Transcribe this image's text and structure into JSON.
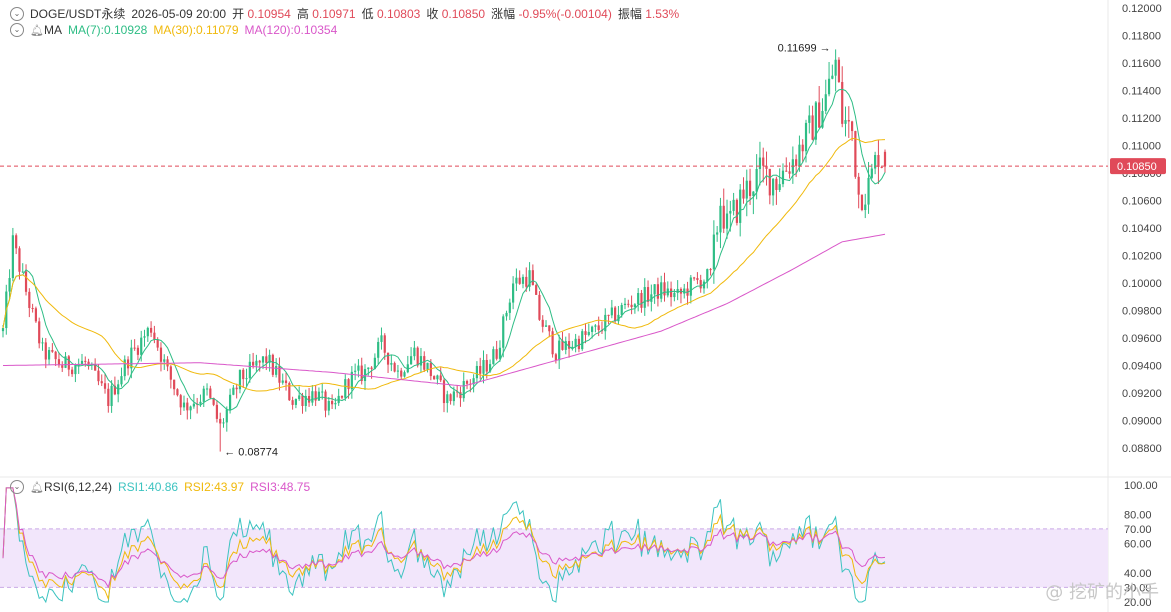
{
  "header": {
    "symbol": "DOGE/USDT永续",
    "datetime": "2026-05-09 20:00",
    "open_label": "开",
    "open": "0.10954",
    "high_label": "高",
    "high": "0.10971",
    "low_label": "低",
    "low": "0.10803",
    "close_label": "收",
    "close": "0.10850",
    "change_label": "涨幅",
    "change": "-0.95%(-0.00104)",
    "amp_label": "振幅",
    "amp": "1.53%"
  },
  "ma_legend": {
    "title": "MA",
    "ma7": "MA(7):0.10928",
    "ma30": "MA(30):0.11079",
    "ma120": "MA(120):0.10354"
  },
  "rsi_legend": {
    "title": "RSI(6,12,24)",
    "rsi1": "RSI1:40.86",
    "rsi2": "RSI2:43.97",
    "rsi3": "RSI3:48.75"
  },
  "watermark": "@ 挖矿的小手",
  "colors": {
    "up": "#2ebd85",
    "down": "#e04a59",
    "ma7": "#2ebd85",
    "ma30": "#f0b90b",
    "ma120": "#d957c9",
    "rsi1": "#3cc3c0",
    "rsi2": "#f0b90b",
    "rsi3": "#d957c9",
    "rsi_band": "#f2e6fb",
    "price_line": "#e04a59"
  },
  "chart_data": [
    {
      "type": "candlestick",
      "ylim": [
        0.088,
        0.12
      ],
      "y_ticks": [
        "0.12000",
        "0.11800",
        "0.11600",
        "0.11400",
        "0.11200",
        "0.11000",
        "0.10800",
        "0.10600",
        "0.10400",
        "0.10200",
        "0.10000",
        "0.09800",
        "0.09600",
        "0.09400",
        "0.09200",
        "0.09000",
        "0.08800"
      ],
      "current_price": "0.10850",
      "annotations": {
        "max": {
          "label": "0.11699",
          "value": 0.11699,
          "candle_index": 253
        },
        "min": {
          "label": "0.08774",
          "value": 0.08774,
          "candle_index": 66
        }
      },
      "anchors_close": [
        [
          0,
          0.0965
        ],
        [
          3,
          0.103
        ],
        [
          8,
          0.0985
        ],
        [
          12,
          0.095
        ],
        [
          18,
          0.094
        ],
        [
          25,
          0.0942
        ],
        [
          32,
          0.0915
        ],
        [
          38,
          0.0945
        ],
        [
          45,
          0.0968
        ],
        [
          50,
          0.0935
        ],
        [
          55,
          0.091
        ],
        [
          62,
          0.092
        ],
        [
          66,
          0.0895
        ],
        [
          72,
          0.093
        ],
        [
          80,
          0.0945
        ],
        [
          88,
          0.0915
        ],
        [
          95,
          0.092
        ],
        [
          100,
          0.0905
        ],
        [
          105,
          0.093
        ],
        [
          110,
          0.0935
        ],
        [
          115,
          0.0955
        ],
        [
          120,
          0.0935
        ],
        [
          125,
          0.095
        ],
        [
          130,
          0.0935
        ],
        [
          135,
          0.0915
        ],
        [
          140,
          0.0925
        ],
        [
          145,
          0.0935
        ],
        [
          150,
          0.095
        ],
        [
          155,
          0.1
        ],
        [
          160,
          0.1005
        ],
        [
          163,
          0.0975
        ],
        [
          168,
          0.095
        ],
        [
          172,
          0.0955
        ],
        [
          176,
          0.096
        ],
        [
          180,
          0.0965
        ],
        [
          185,
          0.0975
        ],
        [
          190,
          0.0985
        ],
        [
          195,
          0.099
        ],
        [
          200,
          0.0995
        ],
        [
          205,
          0.099
        ],
        [
          210,
          0.1
        ],
        [
          215,
          0.1005
        ],
        [
          218,
          0.106
        ],
        [
          220,
          0.104
        ],
        [
          225,
          0.1065
        ],
        [
          230,
          0.108
        ],
        [
          235,
          0.1075
        ],
        [
          240,
          0.109
        ],
        [
          245,
          0.111
        ],
        [
          250,
          0.1135
        ],
        [
          253,
          0.116
        ],
        [
          255,
          0.112
        ],
        [
          258,
          0.111
        ],
        [
          260,
          0.1065
        ],
        [
          263,
          0.107
        ],
        [
          266,
          0.1095
        ],
        [
          268,
          0.1085
        ]
      ],
      "ma120_anchors": [
        [
          0,
          0.094
        ],
        [
          60,
          0.0942
        ],
        [
          100,
          0.0935
        ],
        [
          140,
          0.0925
        ],
        [
          170,
          0.0945
        ],
        [
          200,
          0.0965
        ],
        [
          220,
          0.0985
        ],
        [
          240,
          0.101
        ],
        [
          255,
          0.103
        ],
        [
          268,
          0.10354
        ]
      ]
    },
    {
      "type": "line",
      "ylim": [
        20,
        100
      ],
      "y_ticks": [
        "100.00",
        "80.00",
        "70.00",
        "60.00",
        "40.00",
        "30.00",
        "20.00"
      ],
      "band": [
        30,
        70
      ]
    }
  ]
}
